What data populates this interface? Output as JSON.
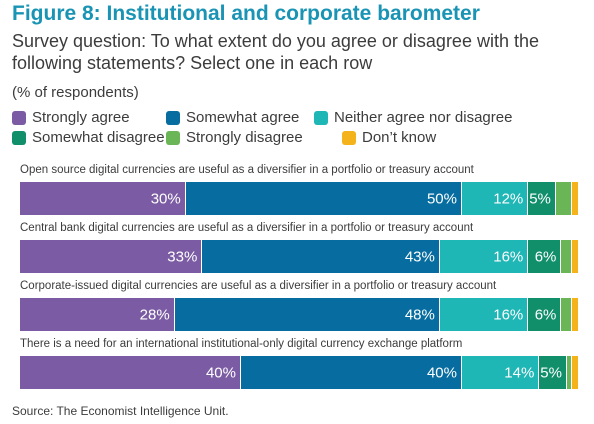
{
  "header": {
    "title": "Figure 8: Institutional and corporate barometer",
    "subtitle": "Survey question: To what extent do you agree or disagree with the following statements? Select one in each row",
    "unit": "(% of respondents)"
  },
  "source": "Source: The Economist Intelligence Unit.",
  "chart_data": {
    "type": "bar",
    "orientation": "horizontal-stacked-100",
    "title": "Figure 8: Institutional and corporate barometer",
    "subtitle": "Survey question: To what extent do you agree or disagree with the following statements? Select one in each row",
    "unit": "(% of respondents)",
    "legend_position": "top",
    "grid": false,
    "xlim": [
      0,
      100
    ],
    "categories": [
      "Open source digital currencies are useful as a diversifier in a portfolio or treasury account",
      "Central bank digital currencies are useful as a diversifier in a portfolio or treasury account",
      "Corporate-issued digital currencies are useful as a diversifier in a portfolio or treasury account",
      "There is a need for an international institutional-only digital currency exchange platform"
    ],
    "series": [
      {
        "name": "Strongly agree",
        "color": "#7b5ca4",
        "values": [
          30,
          33,
          28,
          40
        ],
        "labels": [
          "30%",
          "33%",
          "28%",
          "40%"
        ]
      },
      {
        "name": "Somewhat agree",
        "color": "#076da0",
        "values": [
          50,
          43,
          48,
          40
        ],
        "labels": [
          "50%",
          "43%",
          "48%",
          "40%"
        ]
      },
      {
        "name": "Neither agree nor disagree",
        "color": "#1fb6b6",
        "values": [
          12,
          16,
          16,
          14
        ],
        "labels": [
          "12%",
          "16%",
          "16%",
          "14%"
        ]
      },
      {
        "name": "Somewhat disagree",
        "color": "#118f6b",
        "values": [
          5,
          6,
          6,
          5
        ],
        "labels": [
          "5%",
          "6%",
          "6%",
          "5%"
        ]
      },
      {
        "name": "Strongly disagree",
        "color": "#6ab556",
        "values": [
          3,
          2,
          2,
          1
        ],
        "labels": [
          "",
          "",
          "",
          ""
        ]
      },
      {
        "name": "Don’t know",
        "color": "#f4b31b",
        "values": [
          1,
          1,
          1,
          1
        ],
        "labels": [
          "",
          "",
          "",
          ""
        ]
      }
    ]
  }
}
